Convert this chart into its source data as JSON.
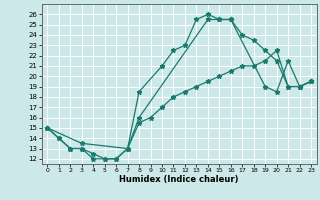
{
  "title": "",
  "xlabel": "Humidex (Indice chaleur)",
  "ylabel": "",
  "xlim": [
    -0.5,
    23.5
  ],
  "ylim": [
    11.5,
    27
  ],
  "xticks": [
    0,
    1,
    2,
    3,
    4,
    5,
    6,
    7,
    8,
    9,
    10,
    11,
    12,
    13,
    14,
    15,
    16,
    17,
    18,
    19,
    20,
    21,
    22,
    23
  ],
  "yticks": [
    12,
    13,
    14,
    15,
    16,
    17,
    18,
    19,
    20,
    21,
    22,
    23,
    24,
    25,
    26
  ],
  "bg_color": "#cce8e8",
  "line_color": "#1a7a6e",
  "grid_color": "#ffffff",
  "series": [
    {
      "x": [
        0,
        1,
        2,
        3,
        4,
        5,
        6,
        7,
        8,
        10,
        11,
        12,
        13,
        14,
        15,
        16,
        17,
        18,
        19,
        20,
        21,
        22,
        23
      ],
      "y": [
        15,
        14,
        13,
        13,
        12,
        12,
        12,
        13,
        18.5,
        21,
        22.5,
        23,
        25.5,
        26,
        25.5,
        25.5,
        24,
        23.5,
        22.5,
        21.5,
        19,
        19,
        19.5
      ]
    },
    {
      "x": [
        0,
        1,
        2,
        3,
        4,
        5,
        6,
        7,
        8,
        14,
        15,
        16,
        19,
        20,
        21,
        22,
        23
      ],
      "y": [
        15,
        14,
        13,
        13,
        12.5,
        12,
        12,
        13,
        16,
        25.5,
        25.5,
        25.5,
        19,
        18.5,
        21.5,
        19,
        19.5
      ]
    },
    {
      "x": [
        0,
        3,
        7,
        8,
        9,
        10,
        11,
        12,
        13,
        14,
        15,
        16,
        17,
        18,
        19,
        20,
        21,
        22,
        23
      ],
      "y": [
        15,
        13.5,
        13,
        15.5,
        16,
        17,
        18,
        18.5,
        19,
        19.5,
        20,
        20.5,
        21,
        21,
        21.5,
        22.5,
        19,
        19,
        19.5
      ]
    }
  ]
}
